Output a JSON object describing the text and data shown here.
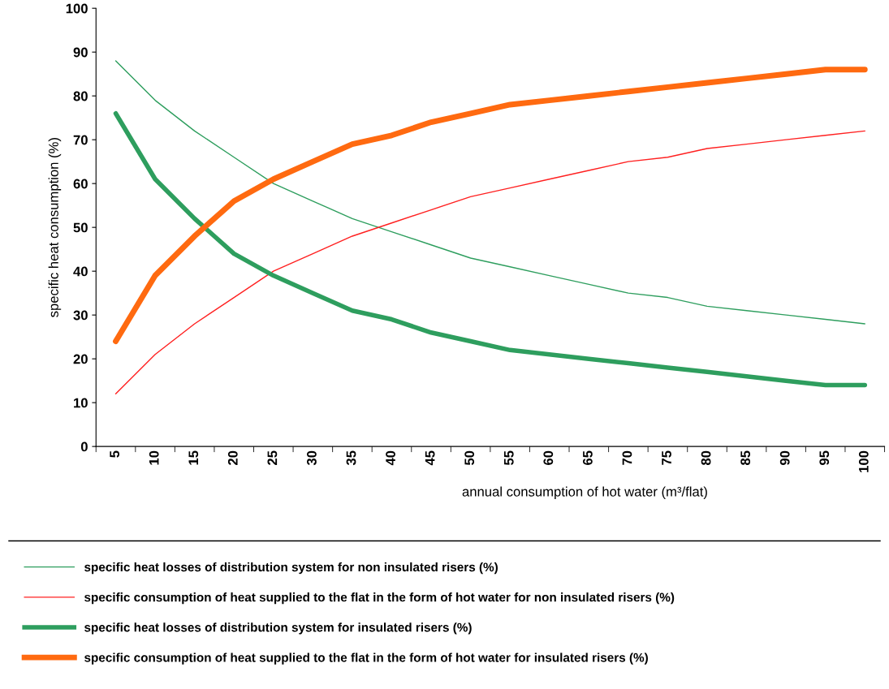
{
  "chart_data": {
    "type": "line",
    "xlabel": "annual consumption of hot water (m³/flat)",
    "ylabel": "specific heat consumption (%)",
    "categories": [
      "5",
      "10",
      "15",
      "20",
      "25",
      "30",
      "35",
      "40",
      "45",
      "50",
      "55",
      "60",
      "65",
      "70",
      "75",
      "80",
      "85",
      "90",
      "95",
      "100"
    ],
    "ylim": [
      0,
      100
    ],
    "yticks": [
      0,
      10,
      20,
      30,
      40,
      50,
      60,
      70,
      80,
      90,
      100
    ],
    "grid": false,
    "legend": "bottom",
    "marker": "none",
    "line_style": "solid",
    "series": [
      {
        "name": "specific heat losses of distribution system for non insulated risers (%)",
        "color": "#2e9e5e",
        "values": [
          88,
          79,
          72,
          66,
          60,
          56,
          52,
          49,
          46,
          43,
          41,
          39,
          37,
          35,
          34,
          32,
          31,
          30,
          29,
          28
        ]
      },
      {
        "name": "specific consumption of heat supplied to the flat in the form of hot water for non insulated risers (%)",
        "color": "#ff2020",
        "values": [
          12,
          21,
          28,
          34,
          40,
          44,
          48,
          51,
          54,
          57,
          59,
          61,
          63,
          65,
          66,
          68,
          69,
          70,
          71,
          72
        ]
      },
      {
        "name": "specific heat losses of distribution system for insulated risers (%)",
        "color": "#2e9e5e",
        "values": [
          76,
          61,
          52,
          44,
          39,
          35,
          31,
          29,
          26,
          24,
          22,
          21,
          20,
          19,
          18,
          17,
          16,
          15,
          14,
          14
        ]
      },
      {
        "name": "specific consumption of heat supplied to the flat in the form of hot water for insulated risers (%)",
        "color": "#ff6a10",
        "values": [
          24,
          39,
          48,
          56,
          61,
          65,
          69,
          71,
          74,
          76,
          78,
          79,
          80,
          81,
          82,
          83,
          84,
          85,
          86,
          86
        ]
      }
    ]
  }
}
